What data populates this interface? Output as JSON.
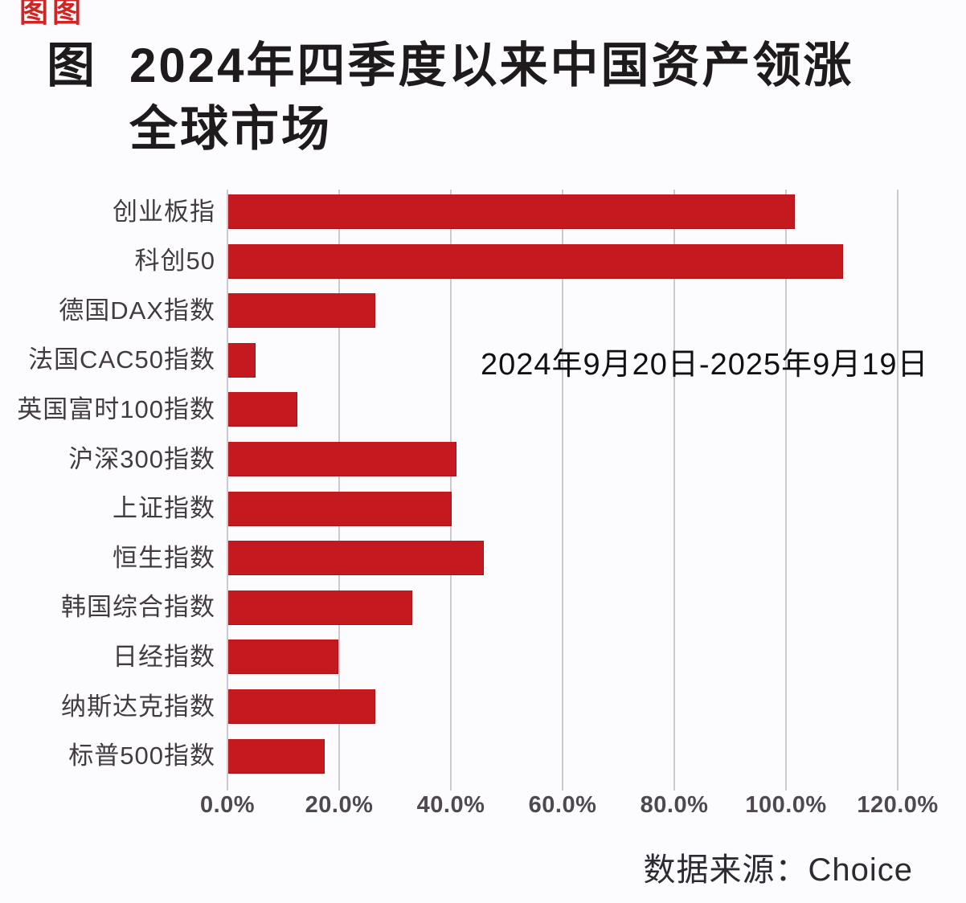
{
  "decoration": {
    "corner_marks": "图图",
    "corner_marks_color": "#CE2624"
  },
  "title": {
    "prefix": "图",
    "line1": "2024年四季度以来中国资产领涨",
    "line2": "全球市场"
  },
  "annotation": "2024年9月20日-2025年9月19日",
  "source": "数据来源：Choice",
  "colors": {
    "bar": "#C4191E",
    "grid": "#CBCAD1",
    "background": "#FCFCFE",
    "title_text": "#1F1B1C",
    "label_text": "#423C41",
    "tick_text": "#4F4851"
  },
  "chart_data": {
    "type": "bar",
    "orientation": "horizontal",
    "title": "图 2024年四季度以来中国资产领涨全球市场",
    "categories": [
      "创业板指",
      "科创50",
      "德国DAX指数",
      "法国CAC50指数",
      "英国富时100指数",
      "沪深300指数",
      "上证指数",
      "恒生指数",
      "韩国综合指数",
      "日经指数",
      "纳斯达克指数",
      "标普500指数"
    ],
    "values": [
      101.5,
      110.0,
      26.4,
      4.9,
      12.4,
      40.9,
      40.0,
      45.7,
      33.0,
      19.7,
      26.4,
      17.3
    ],
    "unit": "%",
    "xlabel": "",
    "ylabel": "",
    "xlim": [
      0,
      120
    ],
    "x_ticks": [
      "0.0%",
      "20.0%",
      "40.0%",
      "60.0%",
      "80.0%",
      "100.0%",
      "120.0%"
    ],
    "x_tick_values": [
      0,
      20,
      40,
      60,
      80,
      100,
      120
    ],
    "grid": true,
    "legend": false,
    "annotation": "2024年9月20日-2025年9月19日",
    "source": "数据来源：Choice"
  }
}
